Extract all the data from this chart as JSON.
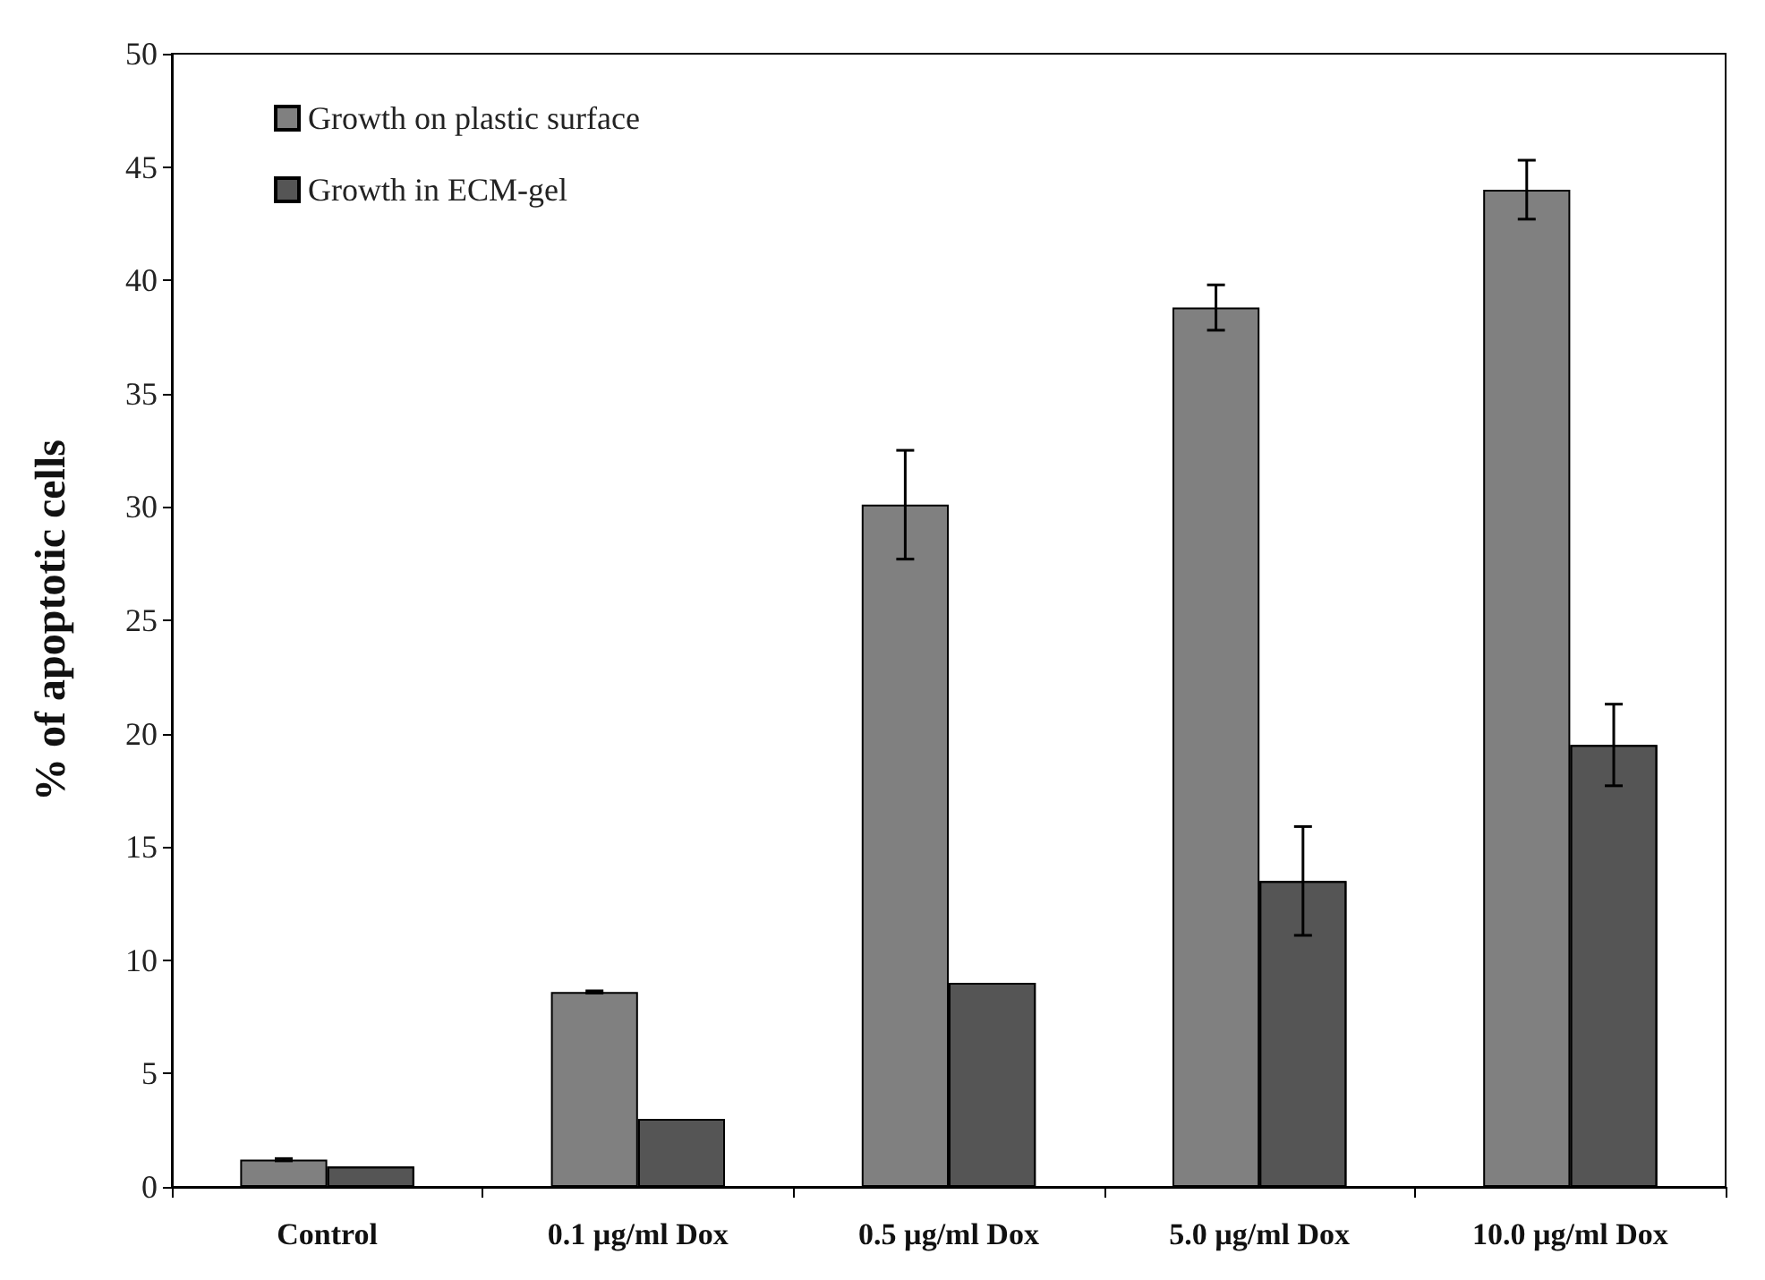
{
  "chart_data": {
    "type": "bar",
    "ylabel": "% of apoptotic cells",
    "categories": [
      "Control",
      "0.1 µg/ml Dox",
      "0.5 µg/ml Dox",
      "5.0 µg/ml Dox",
      "10.0 µg/ml Dox"
    ],
    "series": [
      {
        "name": "Growth on plastic surface",
        "color": "#808080",
        "values": [
          1.2,
          8.6,
          30.1,
          38.8,
          44.0
        ],
        "errors": [
          0.05,
          0.05,
          2.4,
          1.0,
          1.3
        ]
      },
      {
        "name": "Growth in ECM-gel",
        "color": "#555555",
        "values": [
          0.9,
          3.0,
          9.0,
          13.5,
          19.5
        ],
        "errors": [
          null,
          null,
          null,
          2.4,
          1.8
        ]
      }
    ],
    "ylim": [
      0,
      50
    ],
    "yticks": [
      0,
      5,
      10,
      15,
      20,
      25,
      30,
      35,
      40,
      45,
      50
    ],
    "grid": false,
    "legend": "top left"
  }
}
